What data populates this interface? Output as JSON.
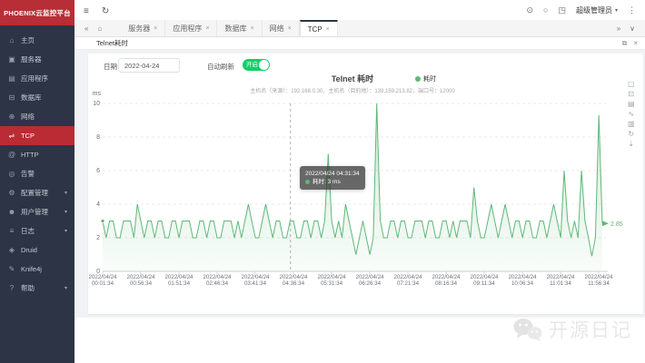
{
  "app": {
    "logo": "PHOENIX云监控平台"
  },
  "colors": {
    "sidebar_bg": "#2d3445",
    "brand_red": "#b82e36",
    "active_red": "#bb2b33",
    "series_green": "#5fb878",
    "toggle_green": "#13ce66",
    "content_gray": "#f0f2f5"
  },
  "sidebar": {
    "items": [
      {
        "id": "home",
        "icon": "home-icon",
        "glyph": "⌂",
        "label": "主页",
        "active": false,
        "caret": false
      },
      {
        "id": "server",
        "icon": "server-icon",
        "glyph": "▣",
        "label": "服务器",
        "active": false,
        "caret": false
      },
      {
        "id": "application",
        "icon": "application-icon",
        "glyph": "▤",
        "label": "应用程序",
        "active": false,
        "caret": false
      },
      {
        "id": "database",
        "icon": "database-icon",
        "glyph": "⊟",
        "label": "数据库",
        "active": false,
        "caret": false
      },
      {
        "id": "network",
        "icon": "network-icon",
        "glyph": "⊕",
        "label": "网络",
        "active": false,
        "caret": false
      },
      {
        "id": "tcp",
        "icon": "tcp-icon",
        "glyph": "⇌",
        "label": "TCP",
        "active": true,
        "caret": false
      },
      {
        "id": "http",
        "icon": "http-icon",
        "glyph": "@",
        "label": "HTTP",
        "active": false,
        "caret": false
      },
      {
        "id": "alarm",
        "icon": "alarm-bell-icon",
        "glyph": "◎",
        "label": "告警",
        "active": false,
        "caret": false
      },
      {
        "id": "config-management",
        "icon": "gear-icon",
        "glyph": "⚙",
        "label": "配置管理",
        "active": false,
        "caret": true
      },
      {
        "id": "user-management",
        "icon": "user-icon",
        "glyph": "☻",
        "label": "用户管理",
        "active": false,
        "caret": true
      },
      {
        "id": "log",
        "icon": "log-icon",
        "glyph": "≡",
        "label": "日志",
        "active": false,
        "caret": true
      },
      {
        "id": "druid",
        "icon": "druid-icon",
        "glyph": "◈",
        "label": "Druid",
        "active": false,
        "caret": false
      },
      {
        "id": "knife4j",
        "icon": "knife4j-icon",
        "glyph": "✎",
        "label": "Knife4j",
        "active": false,
        "caret": false
      },
      {
        "id": "help",
        "icon": "help-icon",
        "glyph": "?",
        "label": "帮助",
        "active": false,
        "caret": true
      }
    ]
  },
  "topbar": {
    "left_icons": [
      {
        "name": "menu-fold-icon",
        "glyph": "≡"
      },
      {
        "name": "refresh-icon",
        "glyph": "↻"
      }
    ],
    "right_icons": [
      {
        "name": "gitee-icon",
        "glyph": "⊙"
      },
      {
        "name": "github-icon",
        "glyph": "○"
      },
      {
        "name": "fullscreen-icon",
        "glyph": "◳"
      }
    ],
    "user": {
      "label": "超级管理员",
      "caret": "▾"
    },
    "more_icon": {
      "name": "more-dots-icon",
      "glyph": "⋮"
    }
  },
  "tabbar": {
    "left_icons": [
      {
        "name": "collapse-tabs-icon",
        "glyph": "«"
      },
      {
        "name": "home-tab-icon",
        "glyph": "⌂"
      }
    ],
    "tabs": [
      {
        "label": "服务器",
        "active": false
      },
      {
        "label": "应用程序",
        "active": false
      },
      {
        "label": "数据库",
        "active": false
      },
      {
        "label": "网络",
        "active": false
      },
      {
        "label": "TCP",
        "active": true
      }
    ],
    "right_icons": [
      {
        "name": "expand-tabs-icon",
        "glyph": "»"
      },
      {
        "name": "tab-menu-icon",
        "glyph": "∨"
      }
    ]
  },
  "panel": {
    "title": "Telnet耗时",
    "icons": [
      {
        "name": "popout-icon",
        "glyph": "⧉"
      },
      {
        "name": "close-panel-icon",
        "glyph": "×"
      }
    ]
  },
  "controls": {
    "date_label": "日期",
    "date_value": "2022-04-24",
    "auto_refresh_label": "自动刷新",
    "toggle_label": "开启",
    "toggle_state": "on"
  },
  "toolbox": [
    {
      "name": "zoom-select-icon",
      "glyph": "▢"
    },
    {
      "name": "zoom-reset-icon",
      "glyph": "⊡"
    },
    {
      "name": "data-view-icon",
      "glyph": "▤"
    },
    {
      "name": "line-chart-icon",
      "glyph": "∿"
    },
    {
      "name": "bar-chart-icon",
      "glyph": "▥"
    },
    {
      "name": "restore-icon",
      "glyph": "↻"
    },
    {
      "name": "save-image-icon",
      "glyph": "⇣"
    }
  ],
  "chart_data": {
    "type": "area",
    "title": "Telnet 耗时",
    "subtitle": "主机名（来源）：192.168.0.30，主机名（目的地）：139.159.213.82，端口号：12000",
    "legend": [
      "耗时"
    ],
    "unit": "ms",
    "ylim": [
      0,
      10
    ],
    "yticks": [
      0,
      2,
      4,
      6,
      8,
      10
    ],
    "grid": "dashed-horizontal",
    "legend_position": "top-right-of-title",
    "xtick_date": "2022/04/24",
    "xtick_times": [
      "00:01:34",
      "00:56:34",
      "01:51:34",
      "02:46:34",
      "03:41:34",
      "04:36:34",
      "05:31:34",
      "06:26:34",
      "07:21:34",
      "08:16:34",
      "09:11:34",
      "10:06:34",
      "11:01:34",
      "11:56:34"
    ],
    "series_name": "耗时",
    "values": [
      3,
      2,
      3,
      3,
      2,
      2,
      3,
      3,
      3,
      2,
      4,
      3,
      2,
      3,
      3,
      2,
      3,
      3,
      2,
      2,
      3,
      3,
      2,
      3,
      3,
      3,
      2,
      2,
      3,
      3,
      2,
      3,
      3,
      2,
      2,
      3,
      3,
      3,
      2,
      3,
      2,
      3,
      4,
      3,
      2,
      2,
      3,
      4,
      3,
      2,
      3,
      3,
      2,
      2,
      3,
      3,
      2,
      2,
      3,
      3,
      2,
      3,
      3,
      2,
      3,
      7,
      3,
      2,
      3,
      2,
      4,
      3,
      2,
      1,
      2,
      3,
      2,
      1,
      2,
      10,
      3,
      2,
      2,
      3,
      3,
      2,
      3,
      3,
      2,
      2,
      3,
      3,
      3,
      2,
      3,
      3,
      2,
      2,
      3,
      3,
      2,
      3,
      2,
      3,
      3,
      3,
      2,
      5,
      3,
      2,
      2,
      3,
      4,
      3,
      2,
      3,
      4,
      3,
      2,
      3,
      3,
      2,
      3,
      3,
      2,
      2,
      3,
      3,
      2,
      3,
      4,
      3,
      2,
      6,
      3,
      2,
      3,
      2,
      6,
      3,
      2,
      0.9,
      2,
      9.3,
      2.85
    ],
    "tooltip": {
      "time": "2022/04/24 04:31:34",
      "series": "耗时",
      "value": "3 ms",
      "x_frac": 0.376
    },
    "end_label": "2.85",
    "line_color": "#5fb878"
  },
  "watermark": {
    "text": "开源日记",
    "icon": "wechat-icon"
  }
}
